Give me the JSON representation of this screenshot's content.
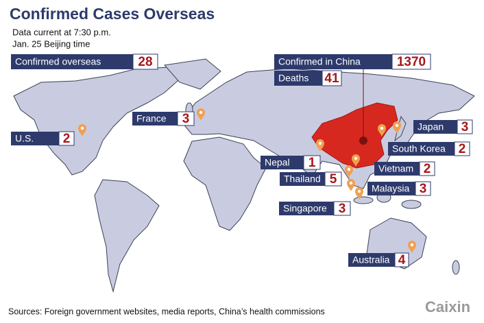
{
  "header": {
    "title": "Confirmed Cases Overseas",
    "subtitle_lines": [
      "Data current at 7:30 p.m.",
      "Jan. 25 Beijing time"
    ]
  },
  "totals": {
    "overseas": {
      "label": "Confirmed overseas",
      "value": 28
    },
    "china": {
      "label": "Confirmed in China",
      "value": 1370
    },
    "deaths": {
      "label": "Deaths",
      "value": 41
    }
  },
  "countries": [
    {
      "name": "France",
      "cases": 3
    },
    {
      "name": "U.S.",
      "cases": 2
    },
    {
      "name": "Japan",
      "cases": 3
    },
    {
      "name": "South Korea",
      "cases": 2
    },
    {
      "name": "Nepal",
      "cases": 1
    },
    {
      "name": "Vietnam",
      "cases": 2
    },
    {
      "name": "Thailand",
      "cases": 5
    },
    {
      "name": "Malaysia",
      "cases": 3
    },
    {
      "name": "Singapore",
      "cases": 3
    },
    {
      "name": "Australia",
      "cases": 4
    }
  ],
  "footer": {
    "source": "Sources: Foreign government websites, media reports, China’s health commissions",
    "logo": "Caixin"
  }
}
